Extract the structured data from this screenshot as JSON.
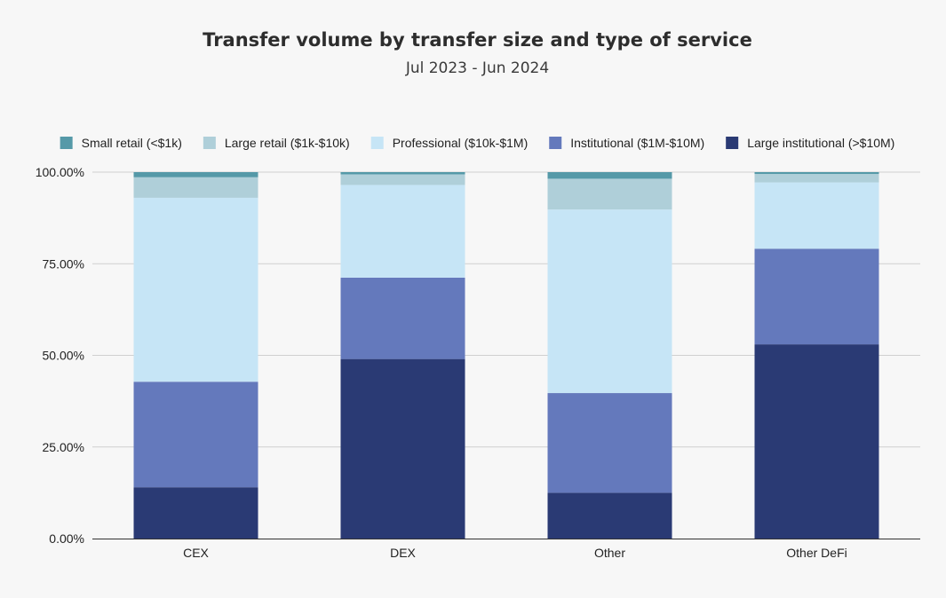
{
  "title": "Transfer volume by transfer size and type of service",
  "subtitle": "Jul 2023 - Jun 2024",
  "chart_data": {
    "type": "bar",
    "stacked": true,
    "categories": [
      "CEX",
      "DEX",
      "Other",
      "Other DeFi"
    ],
    "series": [
      {
        "name": "Large institutional (>$10M)",
        "color": "#2a3a74",
        "values": [
          14,
          49,
          12.5,
          53
        ]
      },
      {
        "name": "Institutional ($1M-$10M)",
        "color": "#6479bc",
        "values": [
          28.8,
          22.2,
          27.2,
          26.1
        ]
      },
      {
        "name": "Professional ($10k-$1M)",
        "color": "#c6e5f6",
        "values": [
          50.2,
          25.3,
          50.1,
          18.1
        ]
      },
      {
        "name": "Large retail ($1k-$10k)",
        "color": "#afcfd9",
        "values": [
          5.6,
          2.9,
          8.4,
          2.3
        ]
      },
      {
        "name": "Small retail (<$1k)",
        "color": "#5599a8",
        "values": [
          1.4,
          0.6,
          1.8,
          0.5
        ]
      }
    ],
    "legend_order": [
      4,
      3,
      2,
      1,
      0
    ],
    "legend_position": "top",
    "yticks": [
      "0.00%",
      "25.00%",
      "50.00%",
      "75.00%",
      "100.00%"
    ],
    "ylim": [
      0,
      100
    ],
    "grid": true
  }
}
